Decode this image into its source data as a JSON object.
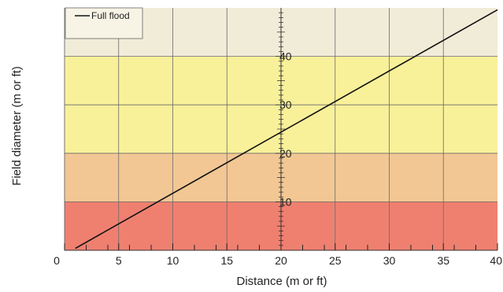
{
  "chart_data": {
    "type": "line",
    "title": "",
    "xlabel": "Distance (m or ft)",
    "ylabel": "Field diameter (m or ft)",
    "xlim": [
      0,
      40
    ],
    "ylim": [
      0,
      50
    ],
    "xticks": [
      0,
      5,
      10,
      15,
      20,
      25,
      30,
      35,
      40
    ],
    "yticks": [
      10,
      20,
      30,
      40
    ],
    "minor_xticks": [
      2,
      4,
      6,
      8,
      12,
      14,
      16,
      18,
      22,
      24,
      26,
      28,
      32,
      34,
      36,
      38
    ],
    "grid": true,
    "legend": "top-left",
    "bands": [
      {
        "from": 0,
        "to": 10,
        "color": "#ef8070"
      },
      {
        "from": 10,
        "to": 20,
        "color": "#f2c794"
      },
      {
        "from": 20,
        "to": 40,
        "color": "#f9f09a"
      },
      {
        "from": 40,
        "to": 50,
        "color": "#f1ecd8"
      }
    ],
    "series": [
      {
        "name": "Full flood",
        "color": "#111111",
        "x": [
          1,
          40
        ],
        "y": [
          0.4,
          49.6
        ]
      }
    ]
  }
}
